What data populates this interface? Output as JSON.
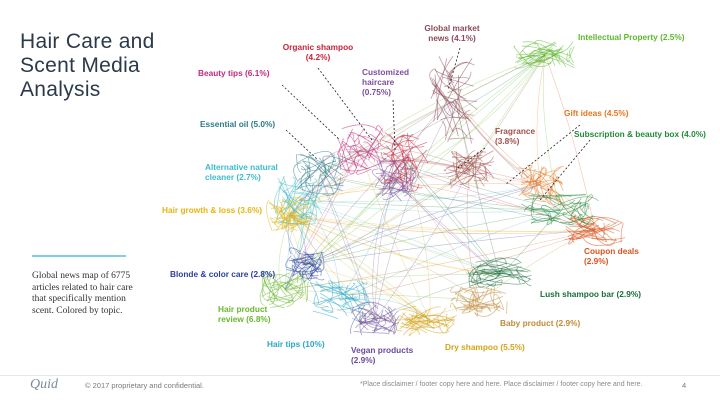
{
  "slide": {
    "title": "Hair Care and Scent Media Analysis",
    "description": "Global news map of 6775 articles related to hair care that specifically mention scent. Colored by topic.",
    "logo": "Quid",
    "copyright": "© 2017 proprietary and confidential.",
    "disclaimer": "*Place disclaimer / footer copy here and here. Place disclaimer / footer copy here and here.",
    "page_number": "4"
  },
  "topics": [
    {
      "id": "organic",
      "line1": "Organic shampoo",
      "line2": "(4.2%)",
      "color": "#c8233a"
    },
    {
      "id": "global",
      "line1": "Global market",
      "line2": "news (4.1%)",
      "color": "#8c4a5a"
    },
    {
      "id": "ip",
      "line1": "Intellectual Property (2.5%)",
      "line2": "",
      "color": "#5cb82e"
    },
    {
      "id": "beauty",
      "line1": "Beauty tips (6.1%)",
      "line2": "",
      "color": "#c02b7e"
    },
    {
      "id": "custom",
      "line1": "Customized",
      "line2": "haircare",
      "line3": "(0.75%)",
      "color": "#7a4ea0"
    },
    {
      "id": "essential",
      "line1": "Essential oil (5.0%)",
      "line2": "",
      "color": "#2e7a87"
    },
    {
      "id": "gift",
      "line1": "Gift ideas (4.5%)",
      "line2": "",
      "color": "#e4761e"
    },
    {
      "id": "subscription",
      "line1": "Subscription & beauty box (4.0%)",
      "line2": "",
      "color": "#228a3a"
    },
    {
      "id": "fragrance",
      "line1": "Fragrance",
      "line2": "(3.8%)",
      "color": "#a0504a"
    },
    {
      "id": "alternative",
      "line1": "Alternative natural",
      "line2": "cleaner (2.7%)",
      "color": "#3cbccb"
    },
    {
      "id": "hairgrowth",
      "line1": "Hair growth & loss (3.6%)",
      "line2": "",
      "color": "#e5b50f"
    },
    {
      "id": "coupon",
      "line1": "Coupon deals",
      "line2": "(2.9%)",
      "color": "#d9531e"
    },
    {
      "id": "blonde",
      "line1": "Blonde & color care (2.8%)",
      "line2": "",
      "color": "#2a3fa0"
    },
    {
      "id": "lush",
      "line1": "Lush shampoo bar (2.9%)",
      "line2": "",
      "color": "#1a6e3a"
    },
    {
      "id": "review",
      "line1": "Hair product",
      "line2": "review (6.8%)",
      "color": "#6ab82d"
    },
    {
      "id": "baby",
      "line1": "Baby product (2.9%)",
      "line2": "",
      "color": "#c08a3a"
    },
    {
      "id": "tips",
      "line1": "Hair tips (10%)",
      "line2": "",
      "color": "#2aa8c8"
    },
    {
      "id": "vegan",
      "line1": "Vegan products",
      "line2": "(2.9%)",
      "color": "#6a4a9a"
    },
    {
      "id": "dry",
      "line1": "Dry shampoo (5.5%)",
      "line2": "",
      "color": "#d4a317"
    }
  ]
}
